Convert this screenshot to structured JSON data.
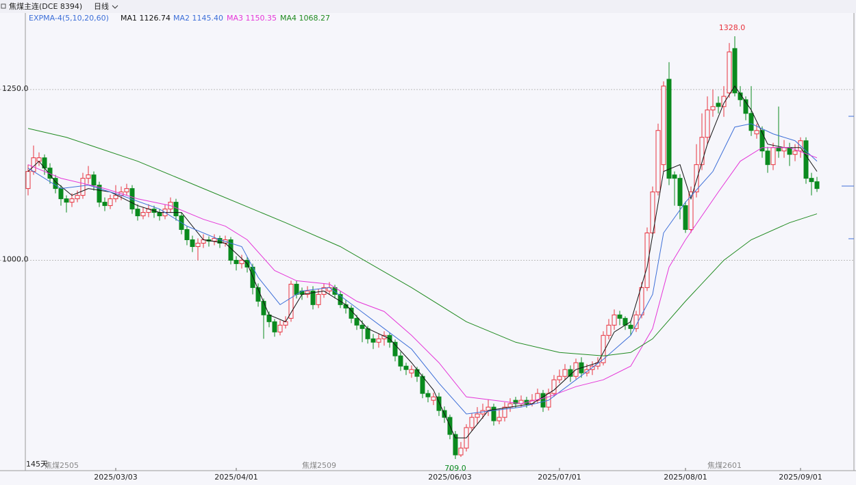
{
  "header": {
    "title": "焦煤主连(DCE 8394)",
    "period": "日线"
  },
  "chart_data": {
    "type": "candlestick",
    "indicator": "EXPMA-4(5,10,20,60)",
    "days_label": "145天",
    "up_color": "#e8313c",
    "down_color": "#0a8a1e",
    "ylim": [
      692,
      1362
    ],
    "yticks": [
      {
        "value": 1000,
        "label": "1000.0"
      },
      {
        "value": 1250,
        "label": "1250.0"
      }
    ],
    "grid": true,
    "categories": [
      null,
      null,
      null,
      null,
      null,
      null,
      null,
      null,
      null,
      null,
      null,
      null,
      null,
      null,
      null,
      null,
      "2025/03/03",
      null,
      null,
      null,
      null,
      null,
      null,
      null,
      null,
      null,
      null,
      null,
      null,
      null,
      null,
      null,
      null,
      null,
      null,
      null,
      null,
      null,
      "2025/04/01",
      null,
      null,
      null,
      null,
      null,
      null,
      null,
      null,
      null,
      null,
      null,
      null,
      null,
      null,
      null,
      null,
      null,
      null,
      null,
      null,
      null,
      null,
      null,
      null,
      null,
      null,
      null,
      null,
      null,
      null,
      null,
      null,
      null,
      null,
      null,
      null,
      null,
      null,
      "2025/06/03",
      null,
      null,
      null,
      null,
      null,
      null,
      null,
      null,
      null,
      null,
      null,
      null,
      null,
      null,
      null,
      null,
      null,
      null,
      null,
      "2025/07/01",
      null,
      null,
      null,
      null,
      null,
      null,
      null,
      null,
      null,
      null,
      null,
      null,
      null,
      null,
      null,
      null,
      null,
      null,
      null,
      null,
      null,
      null,
      "2025/08/01",
      null,
      null,
      null,
      null,
      null,
      null,
      null,
      null,
      null,
      null,
      null,
      null,
      null,
      null,
      null,
      null,
      null,
      null,
      null,
      null,
      "2025/09/01",
      null,
      null,
      null
    ],
    "open": [
      1105,
      1130,
      1145,
      1150,
      1135,
      1120,
      1105,
      1090,
      1085,
      1090,
      1095,
      1120,
      1125,
      1110,
      1085,
      1080,
      1090,
      1095,
      1100,
      1105,
      1075,
      1065,
      1070,
      1075,
      1070,
      1065,
      1075,
      1085,
      1065,
      1045,
      1030,
      1020,
      1025,
      1030,
      1028,
      1032,
      1025,
      1030,
      1000,
      995,
      1000,
      990,
      960,
      940,
      920,
      910,
      895,
      905,
      915,
      965,
      955,
      950,
      955,
      935,
      950,
      955,
      960,
      950,
      935,
      930,
      915,
      905,
      900,
      885,
      880,
      885,
      890,
      880,
      860,
      845,
      835,
      840,
      830,
      805,
      795,
      800,
      780,
      770,
      745,
      715,
      725,
      755,
      770,
      775,
      780,
      785,
      765,
      770,
      785,
      795,
      790,
      795,
      790,
      795,
      805,
      785,
      805,
      825,
      830,
      840,
      830,
      850,
      835,
      840,
      845,
      850,
      890,
      905,
      920,
      915,
      905,
      900,
      920,
      960,
      1040,
      1100,
      1140,
      1265,
      1125,
      1120,
      1080,
      1045,
      1100,
      1140,
      1180,
      1220,
      1230,
      1225,
      1245,
      1310,
      1245,
      1235,
      1215,
      1185,
      1190,
      1160,
      1140,
      1165,
      1160,
      1165,
      1155,
      1160,
      1175,
      1120,
      1115
    ],
    "high": [
      1140,
      1168,
      1158,
      1155,
      1142,
      1125,
      1110,
      1095,
      1098,
      1102,
      1128,
      1138,
      1130,
      1115,
      1092,
      1096,
      1110,
      1108,
      1112,
      1110,
      1082,
      1078,
      1082,
      1080,
      1075,
      1082,
      1092,
      1090,
      1070,
      1050,
      1036,
      1032,
      1038,
      1035,
      1038,
      1036,
      1036,
      1034,
      1006,
      1008,
      1005,
      995,
      966,
      944,
      925,
      914,
      912,
      918,
      970,
      970,
      960,
      962,
      962,
      958,
      966,
      968,
      964,
      955,
      942,
      934,
      920,
      912,
      904,
      892,
      892,
      896,
      894,
      884,
      866,
      850,
      846,
      844,
      834,
      810,
      806,
      806,
      786,
      774,
      750,
      734,
      760,
      776,
      785,
      790,
      796,
      790,
      782,
      792,
      798,
      800,
      802,
      800,
      804,
      812,
      810,
      812,
      832,
      840,
      848,
      846,
      856,
      858,
      848,
      852,
      858,
      896,
      914,
      928,
      926,
      918,
      912,
      926,
      968,
      1048,
      1108,
      1200,
      1262,
      1290,
      1130,
      1126,
      1086,
      1108,
      1170,
      1215,
      1240,
      1250,
      1240,
      1255,
      1318,
      1328,
      1255,
      1240,
      1255,
      1200,
      1196,
      1166,
      1172,
      1225,
      1176,
      1172,
      1170,
      1180,
      1180,
      1128,
      1122
    ],
    "low": [
      1095,
      1125,
      1138,
      1125,
      1112,
      1098,
      1080,
      1070,
      1078,
      1085,
      1090,
      1112,
      1102,
      1078,
      1072,
      1075,
      1085,
      1088,
      1095,
      1068,
      1058,
      1060,
      1063,
      1062,
      1058,
      1060,
      1070,
      1058,
      1038,
      1022,
      1012,
      1000,
      1018,
      1020,
      1022,
      1018,
      1020,
      994,
      985,
      988,
      982,
      950,
      932,
      885,
      902,
      888,
      890,
      900,
      910,
      944,
      942,
      945,
      928,
      930,
      945,
      950,
      944,
      930,
      922,
      908,
      898,
      880,
      878,
      870,
      872,
      875,
      872,
      852,
      838,
      832,
      828,
      822,
      798,
      792,
      788,
      772,
      762,
      738,
      709,
      712,
      720,
      750,
      760,
      768,
      772,
      758,
      760,
      764,
      778,
      784,
      785,
      784,
      786,
      790,
      778,
      780,
      800,
      820,
      825,
      822,
      826,
      828,
      830,
      832,
      840,
      846,
      884,
      898,
      905,
      898,
      890,
      895,
      915,
      955,
      1035,
      1095,
      1130,
      1110,
      1080,
      1060,
      1040,
      1040,
      1092,
      1132,
      1170,
      1210,
      1215,
      1210,
      1238,
      1240,
      1225,
      1205,
      1182,
      1178,
      1150,
      1128,
      1132,
      1150,
      1150,
      1138,
      1145,
      1150,
      1112,
      1095,
      1100
    ],
    "close": [
      1130,
      1150,
      1150,
      1135,
      1120,
      1105,
      1090,
      1085,
      1090,
      1095,
      1120,
      1125,
      1110,
      1085,
      1080,
      1090,
      1095,
      1100,
      1105,
      1075,
      1065,
      1070,
      1075,
      1070,
      1065,
      1075,
      1085,
      1065,
      1045,
      1030,
      1020,
      1025,
      1030,
      1028,
      1032,
      1025,
      1030,
      1000,
      995,
      1000,
      990,
      960,
      940,
      920,
      910,
      895,
      905,
      910,
      965,
      950,
      950,
      955,
      935,
      950,
      960,
      960,
      950,
      935,
      930,
      915,
      905,
      900,
      885,
      880,
      885,
      890,
      880,
      860,
      845,
      840,
      840,
      830,
      805,
      800,
      800,
      780,
      770,
      745,
      715,
      725,
      755,
      770,
      775,
      780,
      785,
      765,
      770,
      785,
      790,
      790,
      795,
      790,
      795,
      805,
      785,
      805,
      825,
      830,
      840,
      830,
      850,
      835,
      840,
      845,
      850,
      890,
      905,
      920,
      915,
      905,
      900,
      920,
      960,
      1040,
      1100,
      1190,
      1255,
      1120,
      1120,
      1080,
      1045,
      1100,
      1140,
      1180,
      1220,
      1225,
      1225,
      1240,
      1305,
      1245,
      1235,
      1215,
      1190,
      1190,
      1160,
      1140,
      1165,
      1160,
      1165,
      1155,
      1160,
      1175,
      1120,
      1115,
      1105
    ],
    "max_label": "1328.0",
    "min_label": "709.0",
    "contracts": [
      {
        "x": 3,
        "label": "焦煤2505"
      },
      {
        "x": 50,
        "label": "焦煤2509"
      },
      {
        "x": 124,
        "label": "焦煤2601"
      }
    ],
    "series": [
      {
        "name": "MA1",
        "color": "#111111",
        "current": {
          "value": 1126.74,
          "label": "1126.74"
        },
        "x": [
          0,
          2,
          5,
          8,
          11,
          15,
          20,
          24,
          28,
          32,
          36,
          40,
          44,
          47,
          50,
          54,
          58,
          62,
          66,
          70,
          74,
          78,
          80,
          84,
          88,
          92,
          96,
          100,
          104,
          107,
          110,
          113,
          116,
          119,
          121,
          124,
          127,
          129,
          132,
          135,
          138,
          141,
          144
        ],
        "values": [
          1130,
          1145,
          1115,
          1095,
          1105,
          1100,
          1080,
          1070,
          1070,
          1030,
          1025,
          995,
          920,
          910,
          950,
          955,
          935,
          900,
          885,
          850,
          810,
          740,
          740,
          780,
          785,
          790,
          810,
          840,
          850,
          895,
          910,
          990,
          1130,
          1140,
          1090,
          1170,
          1230,
          1255,
          1220,
          1170,
          1165,
          1165,
          1130
        ]
      },
      {
        "name": "MA2",
        "color": "#3d6fd8",
        "current": {
          "value": 1145.4,
          "label": "1145.40"
        },
        "x": [
          0,
          6,
          11,
          17,
          24,
          29,
          35,
          39,
          42,
          46,
          50,
          55,
          60,
          65,
          70,
          75,
          80,
          85,
          90,
          95,
          100,
          105,
          110,
          114,
          116,
          120,
          125,
          129,
          132,
          136,
          140,
          144
        ],
        "values": [
          1135,
          1105,
          1110,
          1095,
          1075,
          1050,
          1030,
          1020,
          975,
          935,
          955,
          960,
          930,
          900,
          870,
          820,
          775,
          780,
          785,
          795,
          825,
          855,
          890,
          950,
          1040,
          1085,
          1130,
          1195,
          1200,
          1185,
          1175,
          1145
        ]
      },
      {
        "name": "MA3",
        "color": "#e535d8",
        "current": {
          "value": 1150.35,
          "label": "1150.35"
        },
        "x": [
          0,
          6,
          14,
          20,
          26,
          32,
          36,
          40,
          45,
          49,
          55,
          60,
          65,
          70,
          75,
          80,
          85,
          90,
          95,
          100,
          105,
          110,
          114,
          117,
          120,
          126,
          130,
          134,
          139,
          144
        ],
        "values": [
          1140,
          1120,
          1105,
          1090,
          1080,
          1060,
          1050,
          1030,
          985,
          970,
          965,
          940,
          925,
          890,
          850,
          800,
          795,
          790,
          800,
          815,
          825,
          845,
          900,
          990,
          1030,
          1100,
          1145,
          1165,
          1165,
          1150
        ]
      },
      {
        "name": "MA4",
        "color": "#1f8a1f",
        "current": {
          "value": 1068.27,
          "label": "1068.27"
        },
        "x": [
          0,
          7,
          20,
          32,
          47,
          57,
          70,
          80,
          89,
          97,
          105,
          110,
          114,
          120,
          127,
          132,
          139,
          144
        ],
        "values": [
          1193,
          1180,
          1145,
          1105,
          1055,
          1020,
          960,
          910,
          880,
          865,
          860,
          865,
          885,
          940,
          1000,
          1030,
          1055,
          1068
        ]
      }
    ]
  }
}
